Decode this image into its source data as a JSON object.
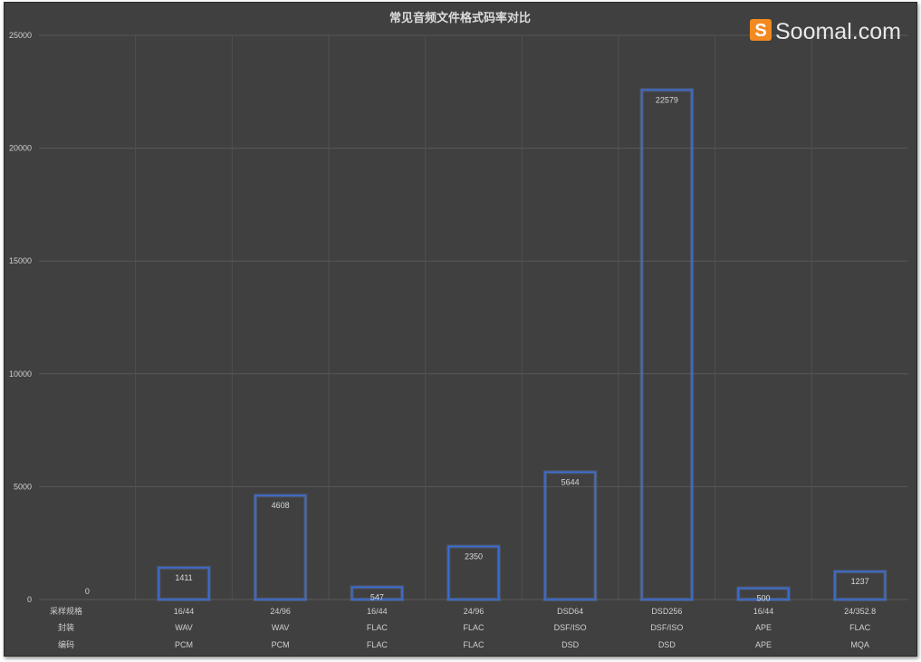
{
  "logo": {
    "text": "Soomal.com",
    "accent": "#f28a21"
  },
  "chart_data": {
    "type": "bar",
    "title": "常见音频文件格式码率对比",
    "xlabel": "",
    "ylabel": "",
    "ylim": [
      0,
      25000
    ],
    "yticks": [
      0,
      5000,
      10000,
      15000,
      20000,
      25000
    ],
    "grid": true,
    "legend": "none",
    "bar_style": {
      "fill": "none",
      "stroke": "#3a6fd8"
    },
    "values": [
      0,
      1411,
      4608,
      547,
      2350,
      5644,
      22579,
      500,
      1237
    ],
    "category_rows": [
      {
        "header": "采样规格",
        "labels": [
          "",
          "16/44",
          "24/96",
          "16/44",
          "24/96",
          "DSD64",
          "DSD256",
          "16/44",
          "24/352.8"
        ]
      },
      {
        "header": "封装",
        "labels": [
          "",
          "WAV",
          "WAV",
          "FLAC",
          "FLAC",
          "DSF/ISO",
          "DSF/ISO",
          "APE",
          "FLAC"
        ]
      },
      {
        "header": "编码",
        "labels": [
          "",
          "PCM",
          "PCM",
          "FLAC",
          "FLAC",
          "DSD",
          "DSD",
          "APE",
          "MQA"
        ]
      }
    ]
  }
}
